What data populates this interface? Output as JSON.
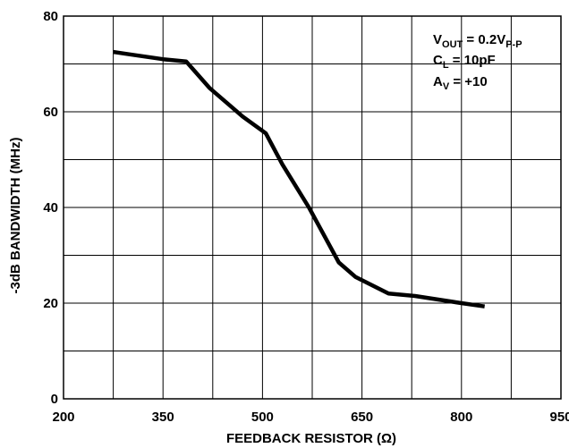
{
  "chart_data": {
    "type": "line",
    "xlabel": "FEEDBACK RESISTOR (Ω)",
    "ylabel": "-3dB BANDWIDTH (MHz)",
    "xlim": [
      200,
      950
    ],
    "ylim": [
      0,
      80
    ],
    "xticks": [
      200,
      350,
      500,
      650,
      800,
      950
    ],
    "yticks": [
      0,
      20,
      40,
      60,
      80
    ],
    "x_tick_labels": [
      "200",
      "350",
      "500",
      "650",
      "800",
      "950"
    ],
    "y_tick_labels": [
      "0",
      "20",
      "40",
      "60",
      "80"
    ],
    "grid": true,
    "series": [
      {
        "x": [
          275,
          300,
          350,
          385,
          420,
          470,
          505,
          530,
          570,
          615,
          640,
          690,
          730,
          800,
          835
        ],
        "y": [
          72.5,
          72.0,
          71.0,
          70.5,
          65.0,
          59.0,
          55.5,
          49.0,
          40.0,
          28.5,
          25.5,
          22.0,
          21.5,
          20.0,
          19.3
        ],
        "color": "#000000"
      }
    ],
    "annotations": {
      "vout_main": "V",
      "vout_sub": "OUT",
      "vout_eq": " = 0.2V",
      "vout_sub2": "P-P",
      "cl_main": "C",
      "cl_sub": "L",
      "cl_eq": " = 10pF",
      "av_main": "A",
      "av_sub": "V",
      "av_eq": " = +10"
    }
  }
}
